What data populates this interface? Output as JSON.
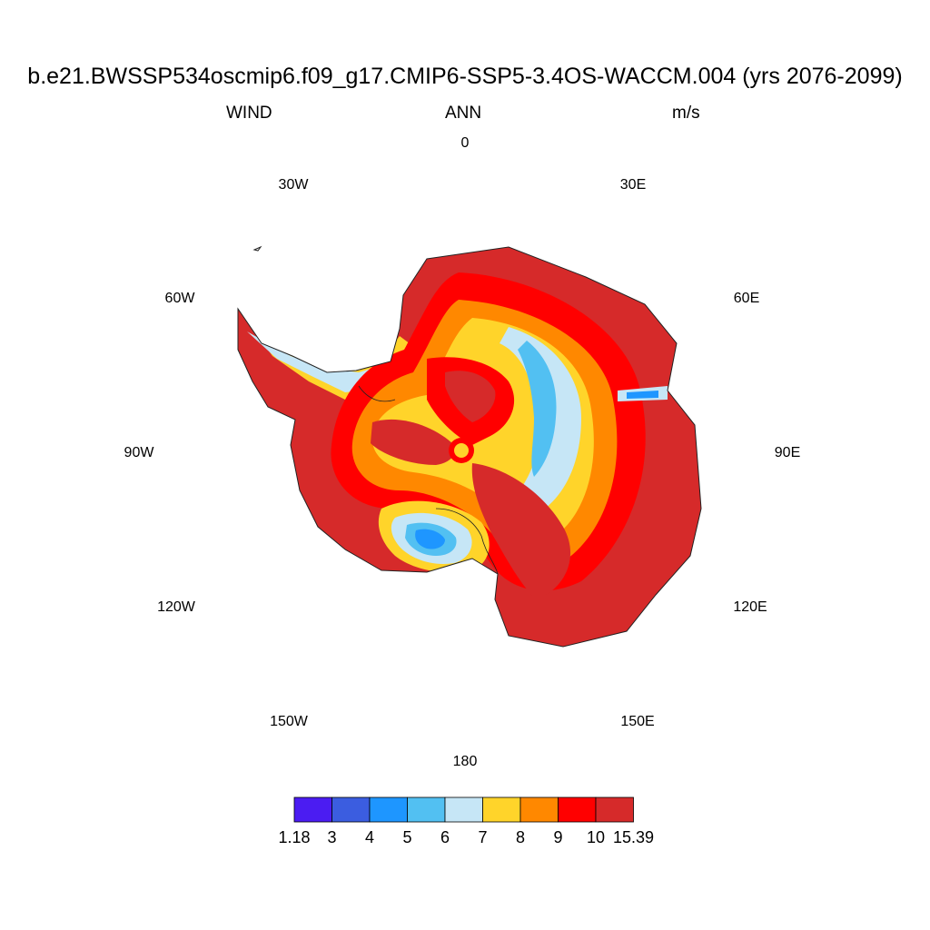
{
  "title": "b.e21.BWSSP534oscmip6.f09_g17.CMIP6-SSP5-3.4OS-WACCM.004 (yrs 2076-2099)",
  "subtitle": {
    "left": "WIND",
    "center": "ANN",
    "right": "m/s"
  },
  "longitude_labels": [
    "0",
    "30E",
    "60E",
    "90E",
    "120E",
    "150E",
    "180",
    "150W",
    "120W",
    "90W",
    "60W",
    "30W"
  ],
  "colorbar": {
    "labels": [
      "1.18",
      "3",
      "4",
      "5",
      "6",
      "7",
      "8",
      "9",
      "10",
      "15.39"
    ],
    "colors": [
      "#4b1cf2",
      "#3b5de0",
      "#1e96ff",
      "#52c0f2",
      "#c6e6f6",
      "#ffd42a",
      "#ff8800",
      "#ff0000",
      "#d62a2a"
    ]
  },
  "map": {
    "projection": "south-polar stereographic",
    "region": "Antarctica",
    "field": "WIND"
  }
}
